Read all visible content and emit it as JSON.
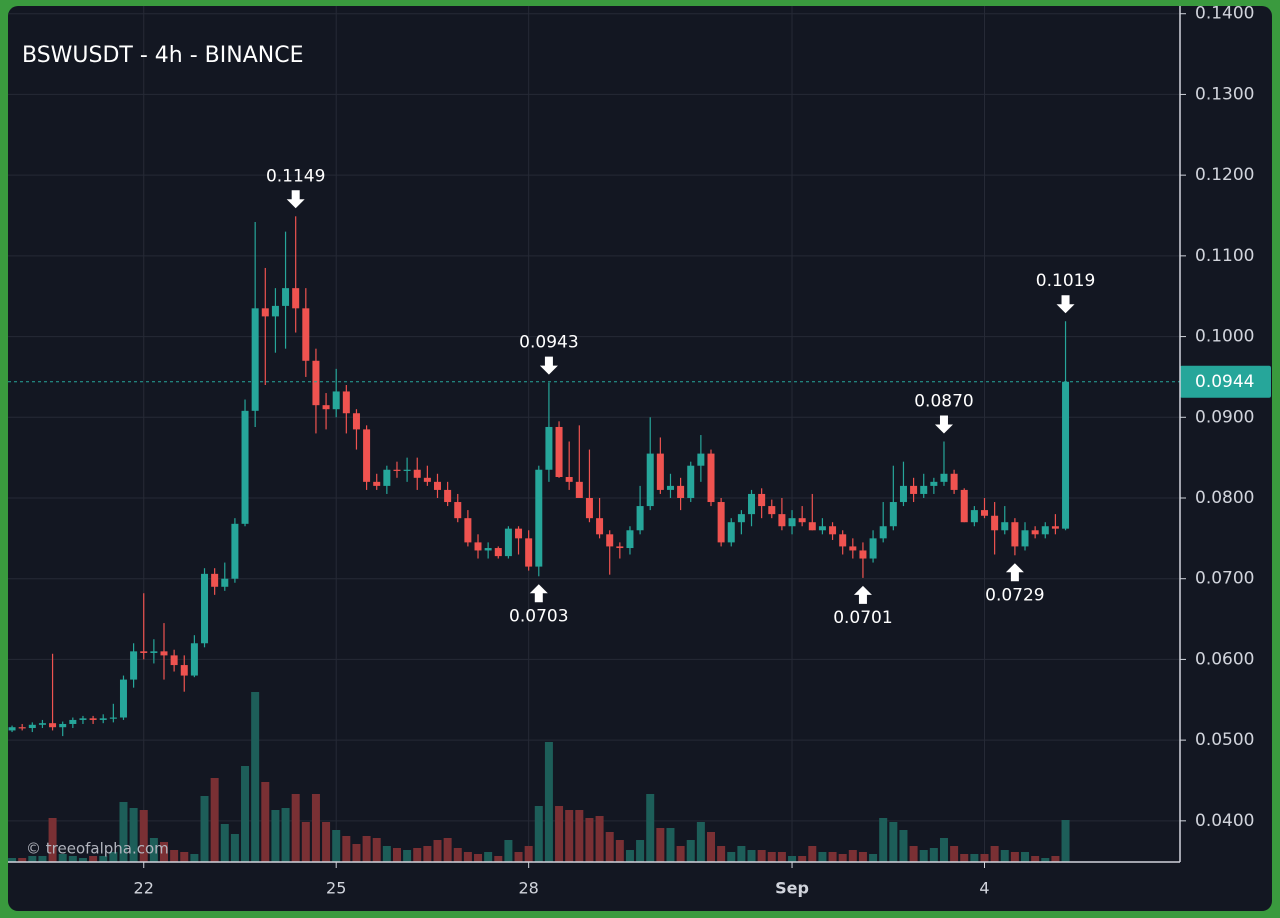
{
  "chart_data": {
    "type": "candlestick",
    "title": "BSWUSDT - 4h - BINANCE",
    "watermark": "© treeofalpha.com",
    "x": [
      0,
      1,
      2,
      3,
      4,
      5,
      6,
      7,
      8,
      9,
      10,
      11,
      12,
      13,
      14,
      15,
      16,
      17,
      18,
      19,
      20,
      21,
      22,
      23,
      24,
      25,
      26,
      27,
      28,
      29,
      30,
      31,
      32,
      33,
      34,
      35,
      36,
      37,
      38,
      39,
      40,
      41,
      42,
      43,
      44,
      45,
      46,
      47,
      48,
      49,
      50,
      51,
      52,
      53,
      54,
      55,
      56,
      57,
      58,
      59,
      60,
      61,
      62,
      63,
      64,
      65,
      66,
      67,
      68,
      69,
      70,
      71,
      72,
      73,
      74,
      75,
      76,
      77,
      78,
      79,
      80,
      81,
      82,
      83,
      84,
      85,
      86,
      87,
      88,
      89,
      90,
      91,
      92,
      93,
      94,
      95,
      96,
      97,
      98,
      99,
      100,
      101,
      102,
      103,
      104
    ],
    "open": [
      0.0512,
      0.0516,
      0.0515,
      0.0519,
      0.0521,
      0.0516,
      0.052,
      0.0525,
      0.0527,
      0.0525,
      0.0527,
      0.0528,
      0.0575,
      0.061,
      0.0608,
      0.061,
      0.0605,
      0.0593,
      0.058,
      0.062,
      0.0706,
      0.069,
      0.07,
      0.0768,
      0.0908,
      0.1035,
      0.1025,
      0.1038,
      0.106,
      0.1035,
      0.097,
      0.0915,
      0.091,
      0.0932,
      0.0905,
      0.0885,
      0.082,
      0.0815,
      0.0835,
      0.0834,
      0.0835,
      0.0825,
      0.082,
      0.081,
      0.0795,
      0.0775,
      0.0745,
      0.0735,
      0.0738,
      0.0728,
      0.0762,
      0.075,
      0.0715,
      0.0835,
      0.0888,
      0.0826,
      0.082,
      0.08,
      0.0775,
      0.0755,
      0.074,
      0.0738,
      0.076,
      0.079,
      0.0855,
      0.081,
      0.0815,
      0.08,
      0.084,
      0.0855,
      0.0795,
      0.0745,
      0.077,
      0.078,
      0.0805,
      0.079,
      0.078,
      0.0765,
      0.0775,
      0.077,
      0.076,
      0.0765,
      0.0755,
      0.074,
      0.0735,
      0.0725,
      0.075,
      0.0765,
      0.0795,
      0.0815,
      0.0805,
      0.0815,
      0.082,
      0.083,
      0.081,
      0.077,
      0.0785,
      0.0778,
      0.076,
      0.077,
      0.074,
      0.076,
      0.0755,
      0.0765,
      0.0762
    ],
    "high": [
      0.0518,
      0.052,
      0.0522,
      0.0525,
      0.0607,
      0.0523,
      0.0528,
      0.053,
      0.053,
      0.0532,
      0.0545,
      0.058,
      0.062,
      0.0682,
      0.0625,
      0.0645,
      0.0612,
      0.0605,
      0.063,
      0.0713,
      0.0713,
      0.072,
      0.0775,
      0.0922,
      0.1142,
      0.1085,
      0.106,
      0.113,
      0.1149,
      0.106,
      0.0985,
      0.093,
      0.096,
      0.094,
      0.091,
      0.089,
      0.083,
      0.084,
      0.0845,
      0.085,
      0.085,
      0.084,
      0.083,
      0.082,
      0.0805,
      0.0785,
      0.0755,
      0.0745,
      0.074,
      0.0765,
      0.0765,
      0.076,
      0.084,
      0.0943,
      0.0895,
      0.087,
      0.089,
      0.086,
      0.08,
      0.076,
      0.0745,
      0.0765,
      0.0815,
      0.09,
      0.0875,
      0.083,
      0.0825,
      0.0845,
      0.0878,
      0.086,
      0.08,
      0.0775,
      0.0785,
      0.081,
      0.0812,
      0.0798,
      0.08,
      0.0785,
      0.079,
      0.0805,
      0.0775,
      0.077,
      0.076,
      0.075,
      0.0745,
      0.076,
      0.0795,
      0.084,
      0.0845,
      0.0825,
      0.083,
      0.0825,
      0.087,
      0.0835,
      0.0812,
      0.079,
      0.08,
      0.0795,
      0.079,
      0.0775,
      0.077,
      0.0765,
      0.077,
      0.078,
      0.1019
    ],
    "low": [
      0.051,
      0.0512,
      0.051,
      0.0515,
      0.0512,
      0.0505,
      0.0515,
      0.052,
      0.052,
      0.0521,
      0.0522,
      0.0525,
      0.0565,
      0.06,
      0.0595,
      0.0575,
      0.0585,
      0.056,
      0.0578,
      0.0615,
      0.068,
      0.0685,
      0.0695,
      0.0765,
      0.0888,
      0.094,
      0.098,
      0.0985,
      0.1005,
      0.095,
      0.088,
      0.0885,
      0.09,
      0.088,
      0.086,
      0.081,
      0.081,
      0.0805,
      0.0825,
      0.082,
      0.081,
      0.0815,
      0.08,
      0.079,
      0.077,
      0.074,
      0.0725,
      0.0725,
      0.0725,
      0.0725,
      0.073,
      0.071,
      0.0703,
      0.082,
      0.0825,
      0.081,
      0.08,
      0.077,
      0.075,
      0.0705,
      0.0725,
      0.073,
      0.0755,
      0.0785,
      0.0805,
      0.08,
      0.0785,
      0.0795,
      0.082,
      0.079,
      0.074,
      0.074,
      0.0755,
      0.0765,
      0.0775,
      0.0775,
      0.076,
      0.0755,
      0.0765,
      0.076,
      0.0755,
      0.0748,
      0.073,
      0.0725,
      0.0701,
      0.072,
      0.0745,
      0.076,
      0.079,
      0.0795,
      0.08,
      0.0805,
      0.0815,
      0.0805,
      0.077,
      0.0765,
      0.0775,
      0.073,
      0.0755,
      0.0729,
      0.0735,
      0.075,
      0.075,
      0.0755,
      0.076
    ],
    "close": [
      0.0516,
      0.0515,
      0.0519,
      0.0521,
      0.0516,
      0.052,
      0.0525,
      0.0527,
      0.0525,
      0.0527,
      0.0528,
      0.0575,
      0.061,
      0.0608,
      0.061,
      0.0605,
      0.0593,
      0.058,
      0.062,
      0.0706,
      0.069,
      0.07,
      0.0768,
      0.0908,
      0.1035,
      0.1025,
      0.1038,
      0.106,
      0.1035,
      0.097,
      0.0915,
      0.091,
      0.0932,
      0.0905,
      0.0885,
      0.082,
      0.0815,
      0.0835,
      0.0834,
      0.0835,
      0.0825,
      0.082,
      0.081,
      0.0795,
      0.0775,
      0.0745,
      0.0735,
      0.0738,
      0.0728,
      0.0762,
      0.075,
      0.0715,
      0.0835,
      0.0888,
      0.0826,
      0.082,
      0.08,
      0.0775,
      0.0755,
      0.074,
      0.0738,
      0.076,
      0.079,
      0.0855,
      0.081,
      0.0815,
      0.08,
      0.084,
      0.0855,
      0.0795,
      0.0745,
      0.077,
      0.078,
      0.0805,
      0.079,
      0.078,
      0.0765,
      0.0775,
      0.077,
      0.076,
      0.0765,
      0.0755,
      0.074,
      0.0735,
      0.0725,
      0.075,
      0.0765,
      0.0795,
      0.0815,
      0.0805,
      0.0815,
      0.082,
      0.083,
      0.081,
      0.077,
      0.0785,
      0.0778,
      0.076,
      0.077,
      0.074,
      0.076,
      0.0755,
      0.0765,
      0.0762,
      0.0944
    ],
    "volumes": [
      2,
      2,
      3,
      3,
      22,
      4,
      3,
      2,
      3,
      3,
      5,
      30,
      27,
      26,
      12,
      10,
      6,
      5,
      4,
      33,
      42,
      19,
      14,
      48,
      85,
      40,
      26,
      27,
      34,
      20,
      34,
      20,
      16,
      13,
      9,
      13,
      12,
      8,
      7,
      6,
      7,
      8,
      11,
      12,
      7,
      5,
      4,
      5,
      3,
      11,
      5,
      8,
      28,
      60,
      28,
      26,
      26,
      22,
      23,
      15,
      11,
      6,
      11,
      34,
      17,
      17,
      8,
      11,
      20,
      15,
      8,
      5,
      8,
      6,
      6,
      5,
      5,
      3,
      3,
      8,
      5,
      5,
      4,
      6,
      5,
      4,
      22,
      20,
      16,
      8,
      6,
      7,
      12,
      8,
      4,
      4,
      4,
      8,
      6,
      5,
      5,
      3,
      2,
      3,
      21
    ],
    "vlim": [
      0,
      100
    ],
    "up_color": "#26a69a",
    "down_color": "#ef5350",
    "up_volume_color": "#1d5e59",
    "down_volume_color": "#7a3034",
    "xlim": [
      -0.4,
      115.3
    ],
    "xticks": [
      {
        "value": 13,
        "label": "22"
      },
      {
        "value": 32,
        "label": "25"
      },
      {
        "value": 51,
        "label": "28"
      },
      {
        "value": 77,
        "label": "Sep",
        "bold": true
      },
      {
        "value": 96,
        "label": "4"
      }
    ],
    "ylim": [
      0.0349,
      0.1417
    ],
    "yticks": [
      {
        "value": 0.04,
        "label": "0.0400"
      },
      {
        "value": 0.05,
        "label": "0.0500"
      },
      {
        "value": 0.06,
        "label": "0.0600"
      },
      {
        "value": 0.07,
        "label": "0.0700"
      },
      {
        "value": 0.08,
        "label": "0.0800"
      },
      {
        "value": 0.09,
        "label": "0.0900"
      },
      {
        "value": 0.1,
        "label": "0.1000"
      },
      {
        "value": 0.11,
        "label": "0.1100"
      },
      {
        "value": 0.12,
        "label": "0.1200"
      },
      {
        "value": 0.13,
        "label": "0.1300"
      },
      {
        "value": 0.14,
        "label": "0.1400"
      }
    ],
    "grid": true,
    "last_price": {
      "value": 0.0944,
      "label": "0.0944"
    },
    "annotations": [
      {
        "x": 28,
        "value": 0.1149,
        "label": "0.1149",
        "position": "above"
      },
      {
        "x": 53,
        "value": 0.0943,
        "label": "0.0943",
        "position": "above"
      },
      {
        "x": 52,
        "value": 0.0703,
        "label": "0.0703",
        "position": "below"
      },
      {
        "x": 84,
        "value": 0.0701,
        "label": "0.0701",
        "position": "below"
      },
      {
        "x": 92,
        "value": 0.087,
        "label": "0.0870",
        "position": "above"
      },
      {
        "x": 99,
        "value": 0.0729,
        "label": "0.0729",
        "position": "below"
      },
      {
        "x": 104,
        "value": 0.1019,
        "label": "0.1019",
        "position": "above"
      }
    ]
  }
}
